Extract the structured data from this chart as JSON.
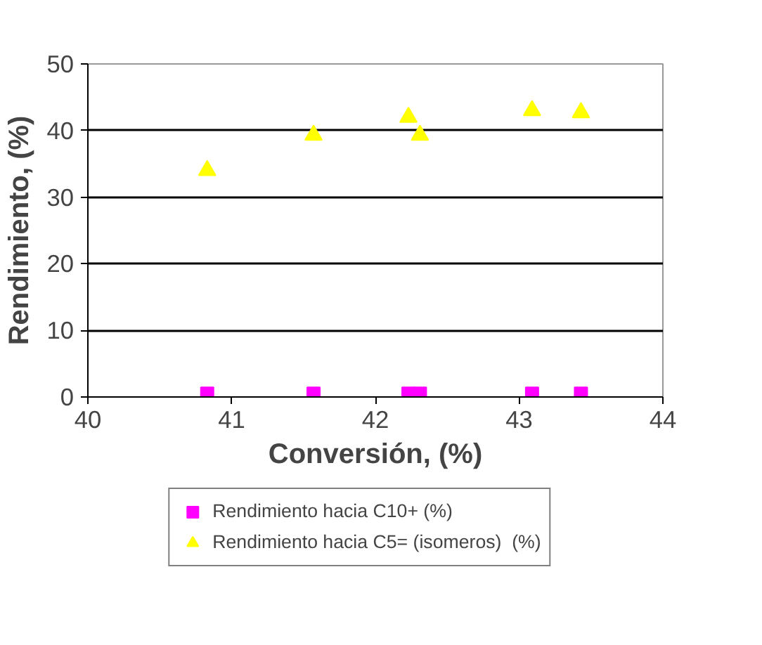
{
  "chart_data": {
    "type": "scatter",
    "xlabel": "Conversión, (%)",
    "ylabel": "Rendimiento, (%)",
    "x": [
      40.83,
      41.57,
      42.23,
      42.31,
      43.09,
      43.43
    ],
    "series": [
      {
        "name": "Rendimiento hacia C10+ (%)",
        "color": "#ff00ff",
        "marker": "square",
        "values": [
          0.5,
          0.5,
          0.5,
          0.5,
          0.5,
          0.5
        ]
      },
      {
        "name": "Rendimiento hacia C5= (isomeros)  (%)",
        "color": "#ffff00",
        "marker": "triangle",
        "values": [
          34,
          39.3,
          42,
          39.3,
          43,
          42.7
        ]
      }
    ],
    "xlim": [
      40,
      44
    ],
    "xticks": [
      40,
      41,
      42,
      43,
      44
    ],
    "ylim": [
      0,
      50
    ],
    "yticks": [
      0,
      10,
      20,
      30,
      40,
      50
    ],
    "grid": "y",
    "legend": "bottom"
  }
}
